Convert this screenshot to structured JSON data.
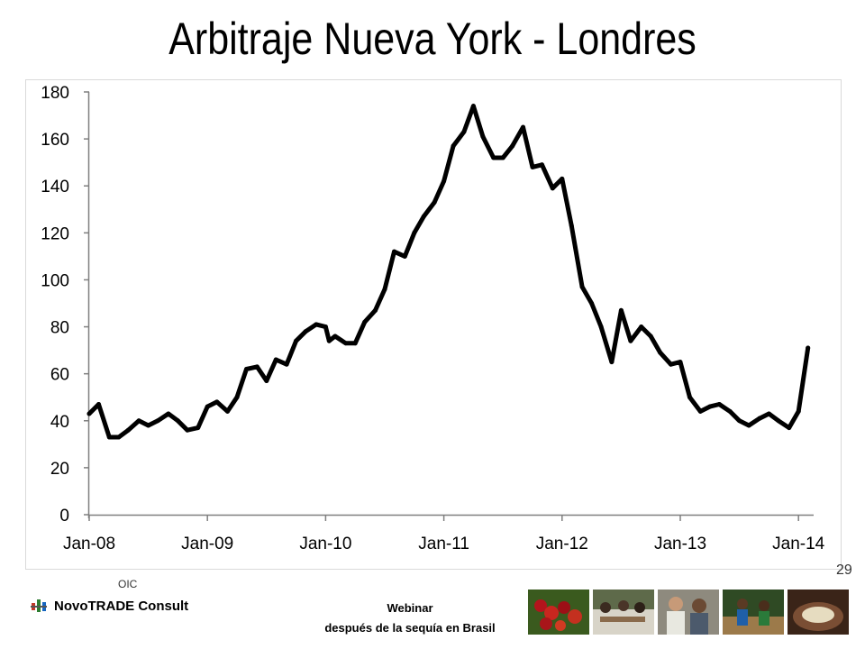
{
  "title": "Arbitraje Nueva York - Londres",
  "footer": {
    "org": "OIC",
    "brand": "NovoTRADE Consult",
    "webinar_line1": "Webinar",
    "webinar_line2": "después de la sequía en Brasil",
    "page_number": "29"
  },
  "colors": {
    "line": "#000000",
    "axis": "#7f7f7f",
    "border": "#d9d9d9"
  },
  "chart_data": {
    "type": "line",
    "title": "Arbitraje Nueva York - Londres",
    "xlabel": "",
    "ylabel": "",
    "ylim": [
      0,
      180
    ],
    "yticks": [
      0,
      20,
      40,
      60,
      80,
      100,
      120,
      140,
      160,
      180
    ],
    "xlim": [
      2008.0,
      2014.15
    ],
    "xticks": [
      {
        "label": "Jan-08",
        "x": 2008.0
      },
      {
        "label": "Jan-09",
        "x": 2009.0
      },
      {
        "label": "Jan-10",
        "x": 2010.0
      },
      {
        "label": "Jan-11",
        "x": 2011.0
      },
      {
        "label": "Jan-12",
        "x": 2012.0
      },
      {
        "label": "Jan-13",
        "x": 2013.0
      },
      {
        "label": "Jan-14",
        "x": 2014.0
      }
    ],
    "grid": false,
    "legend": "none",
    "series": [
      {
        "name": "",
        "points": [
          [
            2008.0,
            43
          ],
          [
            2008.08,
            47
          ],
          [
            2008.17,
            33
          ],
          [
            2008.25,
            33
          ],
          [
            2008.33,
            36
          ],
          [
            2008.42,
            40
          ],
          [
            2008.5,
            38
          ],
          [
            2008.58,
            40
          ],
          [
            2008.67,
            43
          ],
          [
            2008.75,
            40
          ],
          [
            2008.83,
            36
          ],
          [
            2008.92,
            37
          ],
          [
            2009.0,
            46
          ],
          [
            2009.08,
            48
          ],
          [
            2009.17,
            44
          ],
          [
            2009.25,
            50
          ],
          [
            2009.33,
            62
          ],
          [
            2009.42,
            63
          ],
          [
            2009.5,
            57
          ],
          [
            2009.58,
            66
          ],
          [
            2009.67,
            64
          ],
          [
            2009.75,
            74
          ],
          [
            2009.83,
            78
          ],
          [
            2009.92,
            81
          ],
          [
            2010.0,
            80
          ],
          [
            2010.03,
            74
          ],
          [
            2010.08,
            76
          ],
          [
            2010.17,
            73
          ],
          [
            2010.25,
            73
          ],
          [
            2010.33,
            82
          ],
          [
            2010.42,
            87
          ],
          [
            2010.5,
            96
          ],
          [
            2010.58,
            112
          ],
          [
            2010.67,
            110
          ],
          [
            2010.75,
            120
          ],
          [
            2010.83,
            127
          ],
          [
            2010.92,
            133
          ],
          [
            2011.0,
            142
          ],
          [
            2011.08,
            157
          ],
          [
            2011.17,
            163
          ],
          [
            2011.25,
            174
          ],
          [
            2011.33,
            161
          ],
          [
            2011.42,
            152
          ],
          [
            2011.5,
            152
          ],
          [
            2011.58,
            157
          ],
          [
            2011.67,
            165
          ],
          [
            2011.75,
            148
          ],
          [
            2011.83,
            149
          ],
          [
            2011.92,
            139
          ],
          [
            2012.0,
            143
          ],
          [
            2012.08,
            123
          ],
          [
            2012.17,
            97
          ],
          [
            2012.25,
            90
          ],
          [
            2012.33,
            80
          ],
          [
            2012.42,
            65
          ],
          [
            2012.5,
            87
          ],
          [
            2012.58,
            74
          ],
          [
            2012.67,
            80
          ],
          [
            2012.75,
            76
          ],
          [
            2012.83,
            69
          ],
          [
            2012.92,
            64
          ],
          [
            2013.0,
            65
          ],
          [
            2013.08,
            50
          ],
          [
            2013.17,
            44
          ],
          [
            2013.25,
            46
          ],
          [
            2013.33,
            47
          ],
          [
            2013.42,
            44
          ],
          [
            2013.5,
            40
          ],
          [
            2013.58,
            38
          ],
          [
            2013.67,
            41
          ],
          [
            2013.75,
            43
          ],
          [
            2013.83,
            40
          ],
          [
            2013.92,
            37
          ],
          [
            2014.0,
            44
          ],
          [
            2014.08,
            71
          ]
        ]
      }
    ]
  }
}
